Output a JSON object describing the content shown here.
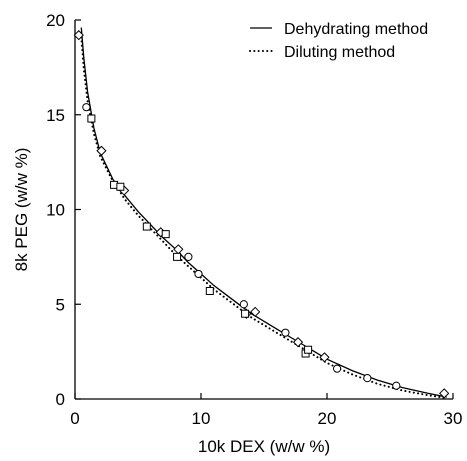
{
  "chart_data": {
    "type": "scatter",
    "xlabel": "10k DEX (w/w %)",
    "ylabel": "8k PEG (w/w %)",
    "xlim": [
      0,
      30
    ],
    "ylim": [
      0,
      20
    ],
    "xticks": [
      0,
      10,
      20,
      30
    ],
    "yticks": [
      0,
      5,
      10,
      15,
      20
    ],
    "xtick_labels": [
      "0",
      "10",
      "20",
      "30"
    ],
    "ytick_labels": [
      "0",
      "5",
      "10",
      "15",
      "20"
    ],
    "grid": false,
    "legend_position": "top-right",
    "legend": [
      {
        "label": "Dehydrating method",
        "style": "solid"
      },
      {
        "label": "Diluting method",
        "style": "dotted"
      }
    ],
    "curves": [
      {
        "name": "Dehydrating method",
        "style": "solid",
        "x": [
          0.5,
          0.7,
          1.0,
          1.5,
          2.0,
          3.0,
          4.0,
          5.0,
          6.0,
          7.0,
          8.0,
          9.0,
          10.0,
          11.0,
          12.0,
          13.0,
          14.0,
          15.0,
          16.0,
          17.0,
          18.0,
          19.0,
          20.0,
          22.0,
          24.0,
          26.0,
          28.0,
          29.5
        ],
        "y": [
          19.6,
          18.0,
          16.2,
          14.3,
          13.0,
          11.6,
          10.7,
          9.9,
          9.2,
          8.5,
          7.9,
          7.2,
          6.6,
          6.0,
          5.5,
          5.0,
          4.5,
          4.1,
          3.7,
          3.3,
          2.9,
          2.5,
          2.1,
          1.5,
          1.0,
          0.6,
          0.3,
          0.1
        ]
      },
      {
        "name": "Diluting method",
        "style": "dotted",
        "x": [
          0.5,
          0.7,
          1.0,
          1.5,
          2.0,
          3.0,
          4.0,
          5.0,
          6.0,
          7.0,
          8.0,
          9.0,
          10.0,
          11.0,
          12.0,
          13.0,
          14.0,
          15.0,
          16.0,
          17.0,
          18.0,
          19.0,
          20.0,
          22.0,
          24.0,
          26.0,
          28.0,
          29.5
        ],
        "y": [
          19.1,
          17.4,
          15.7,
          14.0,
          12.8,
          11.5,
          10.5,
          9.7,
          9.0,
          8.3,
          7.6,
          7.0,
          6.4,
          5.8,
          5.3,
          4.8,
          4.3,
          3.9,
          3.5,
          3.1,
          2.7,
          2.3,
          1.9,
          1.3,
          0.8,
          0.45,
          0.2,
          0.05
        ]
      }
    ],
    "series": [
      {
        "marker": "diamond",
        "x": [
          0.3,
          2.1,
          3.9,
          6.8,
          8.2,
          13.6,
          14.3,
          17.7,
          19.8,
          29.3
        ],
        "y": [
          19.2,
          13.1,
          11.0,
          8.8,
          7.9,
          4.5,
          4.6,
          3.0,
          2.2,
          0.3
        ]
      },
      {
        "marker": "circle",
        "x": [
          0.9,
          9.0,
          9.8,
          13.4,
          16.7,
          20.8,
          23.2,
          25.5
        ],
        "y": [
          15.4,
          7.5,
          6.6,
          5.0,
          3.5,
          1.6,
          1.1,
          0.7
        ]
      },
      {
        "marker": "square",
        "x": [
          1.3,
          3.1,
          3.6,
          5.7,
          7.2,
          8.1,
          10.7,
          13.5,
          18.3,
          18.5
        ],
        "y": [
          14.8,
          11.3,
          11.2,
          9.1,
          8.7,
          7.5,
          5.7,
          4.5,
          2.4,
          2.6
        ]
      }
    ]
  }
}
